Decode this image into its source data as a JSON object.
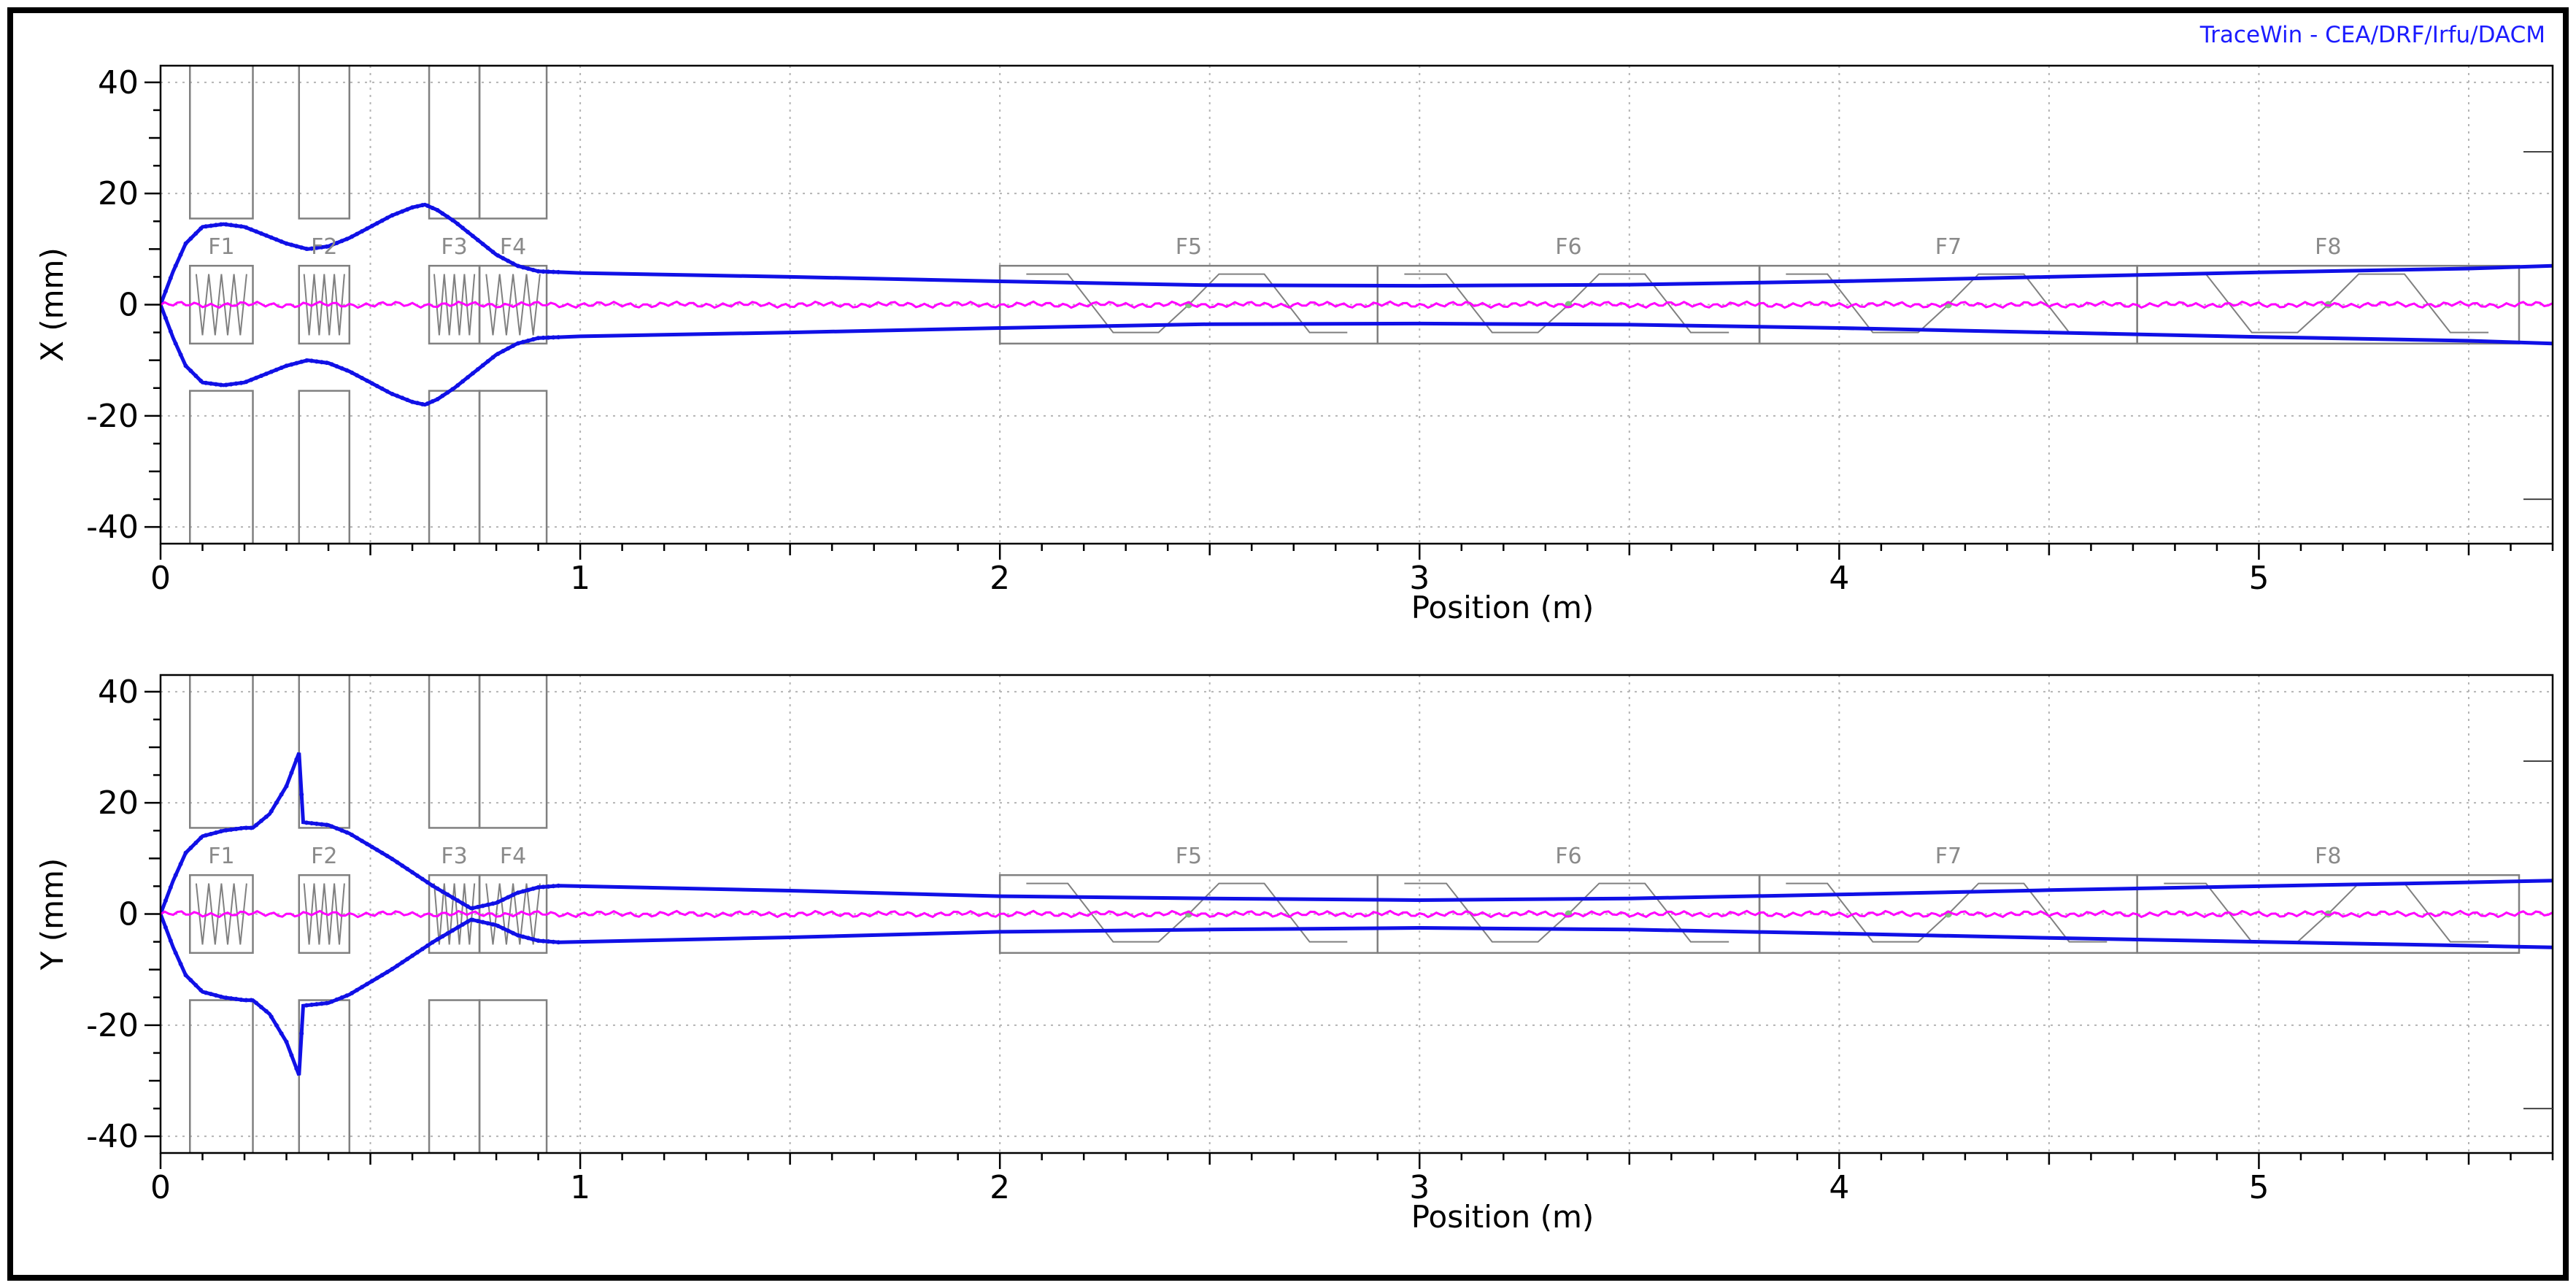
{
  "credit": "TraceWin - CEA/DRF/Irfu/DACM",
  "chart_data": [
    {
      "type": "line",
      "xlabel": "Position (m)",
      "ylabel": "X (mm)",
      "xlim": [
        0,
        5.7
      ],
      "ylim": [
        -43,
        43
      ],
      "xticks": [
        0,
        1,
        2,
        3,
        4,
        5
      ],
      "yticks": [
        -40,
        -20,
        0,
        20,
        40
      ],
      "grid": true,
      "colors": {
        "envelope": "#1010e6",
        "centroid": "#ff00ff",
        "elements": "#808080"
      },
      "elements": [
        {
          "label": "F1",
          "start": 0.07,
          "end": 0.22,
          "aperture": 15.5,
          "kind": "quad"
        },
        {
          "label": "F2",
          "start": 0.33,
          "end": 0.45,
          "aperture": 15.5,
          "kind": "quad"
        },
        {
          "label": "F3",
          "start": 0.64,
          "end": 0.76,
          "aperture": 15.5,
          "kind": "quad"
        },
        {
          "label": "F4",
          "start": 0.76,
          "end": 0.92,
          "aperture": 15.5,
          "kind": "quad"
        },
        {
          "label": "F5",
          "start": 2.0,
          "end": 2.9,
          "aperture": 7,
          "kind": "section"
        },
        {
          "label": "F6",
          "start": 2.9,
          "end": 3.81,
          "aperture": 7,
          "kind": "section"
        },
        {
          "label": "F7",
          "start": 3.81,
          "end": 4.71,
          "aperture": 7,
          "kind": "section"
        },
        {
          "label": "F8",
          "start": 4.71,
          "end": 5.62,
          "aperture": 7,
          "kind": "section"
        }
      ],
      "series": [
        {
          "role": "envelope",
          "x": [
            0,
            0.03,
            0.06,
            0.1,
            0.15,
            0.2,
            0.25,
            0.3,
            0.35,
            0.4,
            0.45,
            0.5,
            0.55,
            0.6,
            0.63,
            0.66,
            0.7,
            0.75,
            0.8,
            0.85,
            0.9,
            1.0,
            1.5,
            2.0,
            2.5,
            3.0,
            3.5,
            4.0,
            4.5,
            5.0,
            5.5,
            5.7
          ],
          "values": [
            0,
            6,
            11,
            14,
            14.5,
            14,
            12.5,
            11,
            10,
            10.5,
            12,
            14,
            16,
            17.5,
            18,
            17,
            15,
            12,
            9,
            7,
            6,
            5.7,
            5,
            4.2,
            3.5,
            3.4,
            3.6,
            4.2,
            5,
            5.8,
            6.5,
            7
          ]
        }
      ]
    },
    {
      "type": "line",
      "xlabel": "Position (m)",
      "ylabel": "Y (mm)",
      "xlim": [
        0,
        5.7
      ],
      "ylim": [
        -43,
        43
      ],
      "xticks": [
        0,
        1,
        2,
        3,
        4,
        5
      ],
      "yticks": [
        -40,
        -20,
        0,
        20,
        40
      ],
      "grid": true,
      "colors": {
        "envelope": "#1010e6",
        "centroid": "#ff00ff",
        "elements": "#808080"
      },
      "elements": [
        {
          "label": "F1",
          "start": 0.07,
          "end": 0.22,
          "aperture": 15.5,
          "kind": "quad"
        },
        {
          "label": "F2",
          "start": 0.33,
          "end": 0.45,
          "aperture": 15.5,
          "kind": "quad"
        },
        {
          "label": "F3",
          "start": 0.64,
          "end": 0.76,
          "aperture": 15.5,
          "kind": "quad"
        },
        {
          "label": "F4",
          "start": 0.76,
          "end": 0.92,
          "aperture": 15.5,
          "kind": "quad"
        },
        {
          "label": "F5",
          "start": 2.0,
          "end": 2.9,
          "aperture": 7,
          "kind": "section"
        },
        {
          "label": "F6",
          "start": 2.9,
          "end": 3.81,
          "aperture": 7,
          "kind": "section"
        },
        {
          "label": "F7",
          "start": 3.81,
          "end": 4.71,
          "aperture": 7,
          "kind": "section"
        },
        {
          "label": "F8",
          "start": 4.71,
          "end": 5.62,
          "aperture": 7,
          "kind": "section"
        }
      ],
      "series": [
        {
          "role": "envelope",
          "x": [
            0,
            0.03,
            0.06,
            0.1,
            0.15,
            0.2,
            0.22,
            0.26,
            0.3,
            0.33,
            0.34,
            0.4,
            0.45,
            0.55,
            0.65,
            0.74,
            0.8,
            0.85,
            0.9,
            0.95,
            1.0,
            1.5,
            2.0,
            2.5,
            3.0,
            3.5,
            4.0,
            4.5,
            5.0,
            5.5,
            5.7
          ],
          "values": [
            0,
            6,
            11,
            14,
            15,
            15.5,
            15.5,
            18,
            23,
            29,
            16.5,
            16,
            14.5,
            10,
            5,
            1,
            2,
            3.8,
            4.8,
            5.1,
            5,
            4.2,
            3.2,
            2.8,
            2.5,
            2.8,
            3.5,
            4.3,
            5,
            5.7,
            6
          ]
        }
      ]
    }
  ]
}
